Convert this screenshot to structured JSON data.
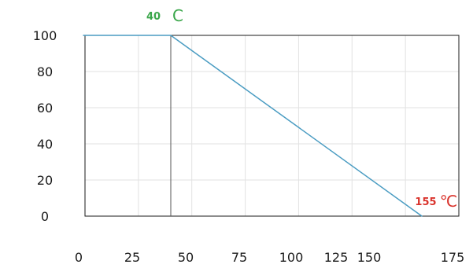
{
  "chart_data": {
    "type": "line",
    "title": "",
    "xlabel": "",
    "ylabel": "",
    "grid": true,
    "legend": "none",
    "x_ticks": [
      {
        "label": "0",
        "value": 0
      },
      {
        "label": "25",
        "value": 25
      },
      {
        "label": "50",
        "value": 50
      },
      {
        "label": "75",
        "value": 75
      },
      {
        "label": "100",
        "value": 100
      },
      {
        "label": "125",
        "value": 125
      },
      {
        "label": "150",
        "value": 150
      },
      {
        "label": "175",
        "value": 175
      }
    ],
    "y_ticks": [
      {
        "label": "0",
        "value": 0
      },
      {
        "label": "20",
        "value": 20
      },
      {
        "label": "40",
        "value": 40
      },
      {
        "label": "60",
        "value": 60
      },
      {
        "label": "80",
        "value": 80
      },
      {
        "label": "100",
        "value": 100
      }
    ],
    "ylim": [
      0,
      100
    ],
    "series": [
      {
        "color": "#4a9cc2",
        "points": [
          {
            "x": 0,
            "y": 100
          },
          {
            "x": 40,
            "y": 100
          },
          {
            "x": 155,
            "y": 0
          }
        ]
      }
    ],
    "annotations": [
      {
        "id": "start",
        "value": "40",
        "unit": "C",
        "color": "#3aa64a"
      },
      {
        "id": "end",
        "value": "155",
        "unit": "℃",
        "color": "#d9322b"
      }
    ]
  }
}
